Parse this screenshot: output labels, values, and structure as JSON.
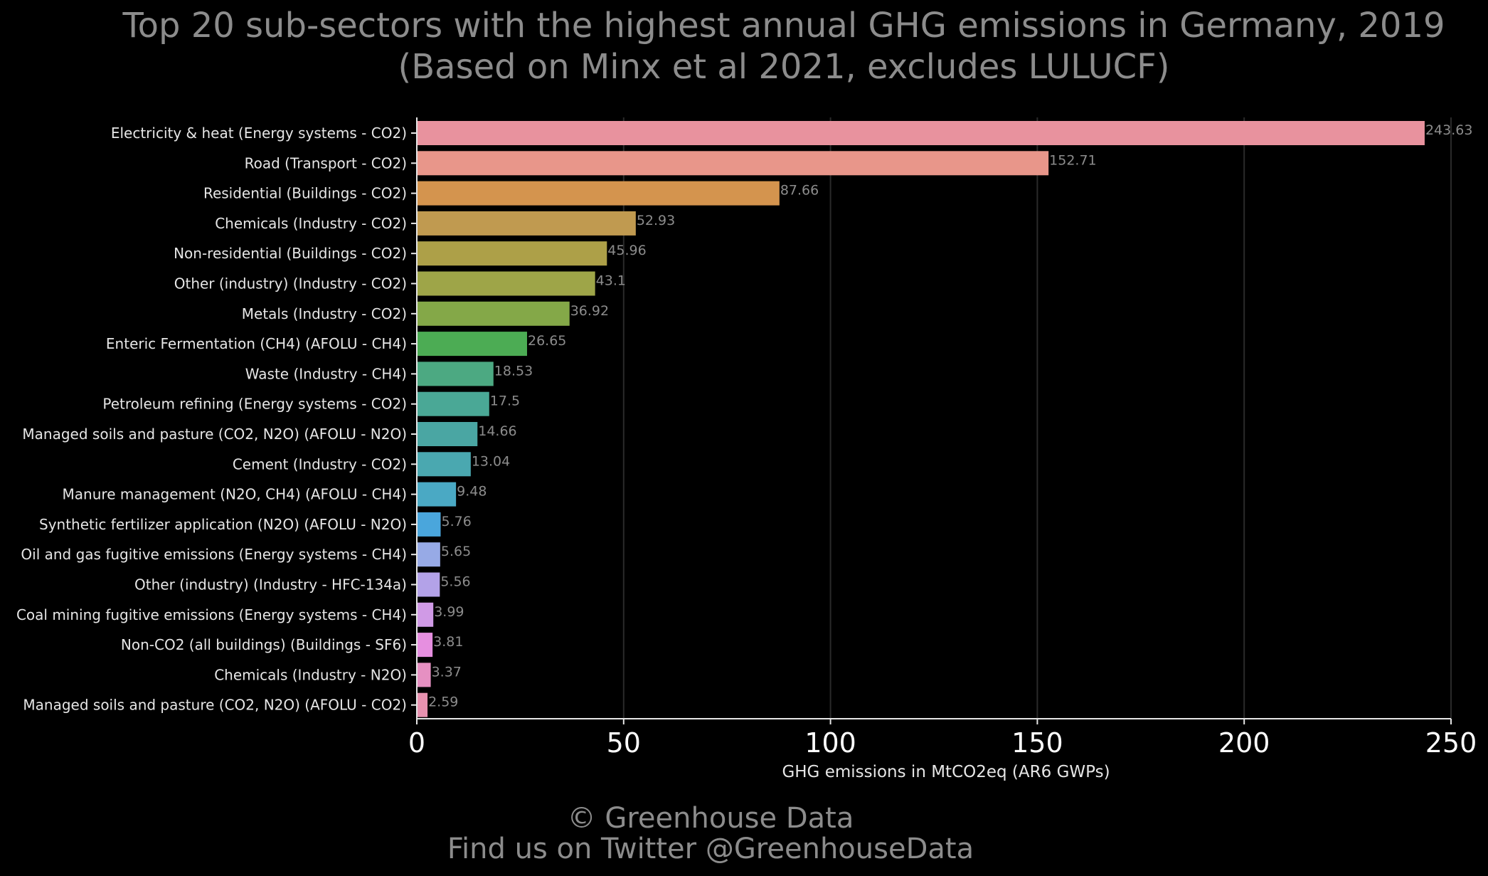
{
  "chart_data": {
    "type": "bar",
    "orientation": "horizontal",
    "title": "Top 20 sub-sectors with the highest annual GHG emissions in Germany, 2019",
    "subtitle": "(Based on Minx et al 2021, excludes LULUCF)",
    "xlabel": "GHG emissions in MtCO2eq (AR6 GWPs)",
    "ylabel": "",
    "xlim": [
      0,
      250
    ],
    "xticks": [
      "0",
      "50",
      "100",
      "150",
      "200",
      "250"
    ],
    "grid": "vertical",
    "categories": [
      "Electricity & heat (Energy systems - CO2)",
      "Road (Transport - CO2)",
      "Residential (Buildings - CO2)",
      "Chemicals (Industry - CO2)",
      "Non-residential (Buildings - CO2)",
      "Other (industry) (Industry - CO2)",
      "Metals (Industry - CO2)",
      "Enteric Fermentation (CH4) (AFOLU - CH4)",
      "Waste (Industry - CH4)",
      "Petroleum refining (Energy systems - CO2)",
      "Managed soils and pasture (CO2, N2O) (AFOLU - N2O)",
      "Cement (Industry - CO2)",
      "Manure management (N2O, CH4) (AFOLU - CH4)",
      "Synthetic fertilizer application (N2O) (AFOLU - N2O)",
      "Oil and gas fugitive emissions (Energy systems - CH4)",
      "Other (industry) (Industry - HFC-134a)",
      "Coal mining fugitive emissions (Energy systems - CH4)",
      "Non-CO2 (all buildings) (Buildings - SF6)",
      "Chemicals (Industry - N2O)",
      "Managed soils and pasture (CO2, N2O) (AFOLU - CO2)"
    ],
    "values": [
      243.63,
      152.71,
      87.66,
      52.93,
      45.96,
      43.1,
      36.92,
      26.65,
      18.53,
      17.5,
      14.66,
      13.04,
      9.48,
      5.76,
      5.65,
      5.56,
      3.99,
      3.81,
      3.37,
      2.59
    ],
    "value_labels": [
      "243.63",
      "152.71",
      "87.66",
      "52.93",
      "45.96",
      "43.1",
      "36.92",
      "26.65",
      "18.53",
      "17.5",
      "14.66",
      "13.04",
      "9.48",
      "5.76",
      "5.65",
      "5.56",
      "3.99",
      "3.81",
      "3.37",
      "2.59"
    ],
    "colors": [
      "#e8929e",
      "#e8968a",
      "#d4944e",
      "#c09a50",
      "#ada048",
      "#9ea548",
      "#84a848",
      "#4cac54",
      "#4ca982",
      "#4aa896",
      "#4aa6a3",
      "#4aa8b0",
      "#4aa9c4",
      "#4aa6dc",
      "#97aae6",
      "#b3a2e8",
      "#d09ae6",
      "#e68fe0",
      "#e690c2",
      "#e892b0"
    ]
  },
  "footer": {
    "line1": "© Greenhouse Data",
    "line2": "Find us on Twitter @GreenhouseData"
  }
}
